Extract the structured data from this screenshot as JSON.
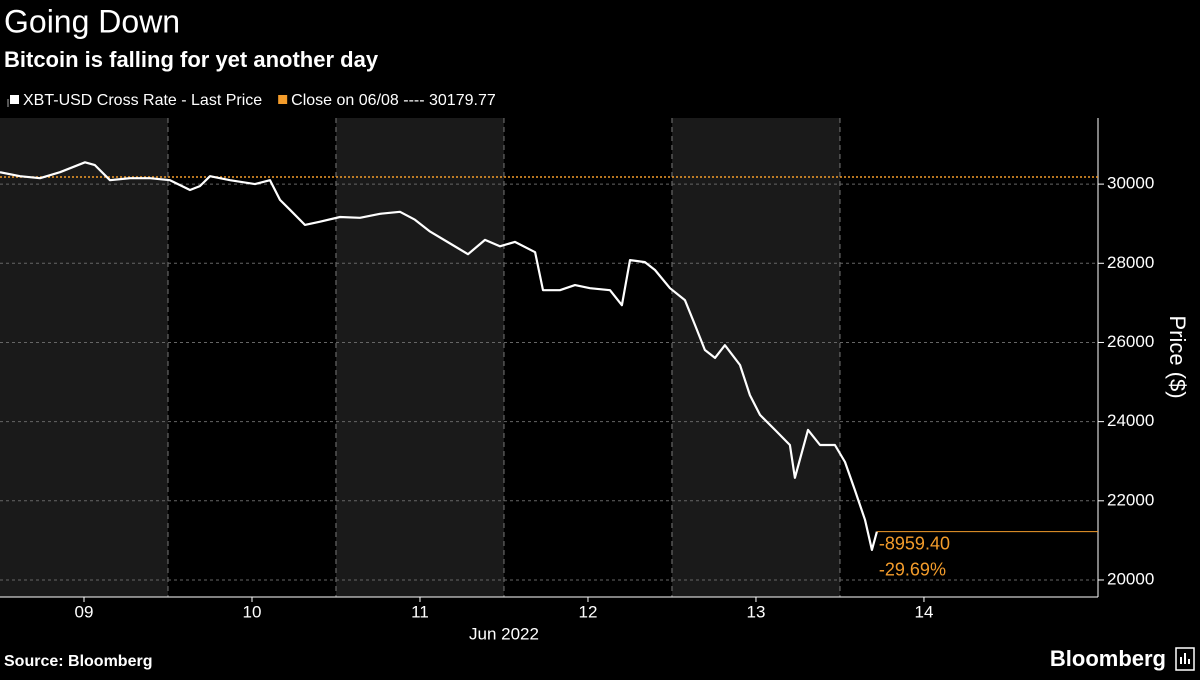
{
  "chart_data": {
    "type": "line",
    "title": "Going Down",
    "subtitle": "Bitcoin is falling for yet another day",
    "x_label": "Jun 2022",
    "y_label": "Price ($)",
    "source": "Source: Bloomberg",
    "brand": "Bloomberg",
    "legend_position": "top-left",
    "grid": true,
    "x": [
      9.0,
      9.119,
      9.238,
      9.357,
      9.506,
      9.565,
      9.655,
      9.774,
      9.893,
      10.012,
      10.131,
      10.19,
      10.25,
      10.369,
      10.518,
      10.607,
      10.667,
      10.726,
      10.815,
      10.905,
      11.024,
      11.143,
      11.262,
      11.381,
      11.47,
      11.56,
      11.679,
      11.786,
      11.887,
      11.976,
      12.065,
      12.185,
      12.232,
      12.333,
      12.423,
      12.512,
      12.631,
      12.702,
      12.75,
      12.839,
      12.899,
      12.988,
      13.077,
      13.137,
      13.196,
      13.256,
      13.315,
      13.405,
      13.464,
      13.524,
      13.613,
      13.702,
      13.732,
      13.81,
      13.881,
      13.97,
      14.03,
      14.089,
      14.149,
      14.19,
      14.22
    ],
    "series": [
      {
        "name": "XBT-USD Cross Rate - Last Price",
        "color": "#ffffff",
        "values": [
          30300,
          30200,
          30150,
          30300,
          30550,
          30480,
          30100,
          30150,
          30150,
          30100,
          29850,
          29950,
          30200,
          30100,
          30000,
          30100,
          29600,
          29350,
          28970,
          29050,
          29170,
          29150,
          29250,
          29300,
          29100,
          28800,
          28500,
          28230,
          28590,
          28430,
          28540,
          28280,
          27320,
          27320,
          27450,
          27370,
          27320,
          26940,
          28080,
          28030,
          27830,
          27370,
          27070,
          26440,
          25810,
          25610,
          25930,
          25430,
          24670,
          24170,
          23790,
          23410,
          22580,
          23790,
          23410,
          23410,
          22980,
          22270,
          21520,
          20760,
          21220.37
        ]
      }
    ],
    "reference_line": {
      "name": "Close on 06/08 ---- 30179.77",
      "value": 30179.77,
      "color": "#f39c2b"
    },
    "annotations": [
      "-8959.40",
      "-29.69%"
    ],
    "xlim": [
      9.0,
      15.536
    ],
    "xticks": [
      {
        "value": 9.5,
        "label": "09"
      },
      {
        "value": 10.5,
        "label": "10"
      },
      {
        "value": 11.5,
        "label": "11"
      },
      {
        "value": 12.5,
        "label": "12"
      },
      {
        "value": 13.5,
        "label": "13"
      },
      {
        "value": 14.5,
        "label": "14"
      }
    ],
    "ylim": [
      19570,
      31670
    ],
    "yticks": [
      20000,
      22000,
      24000,
      26000,
      28000,
      30000
    ]
  }
}
